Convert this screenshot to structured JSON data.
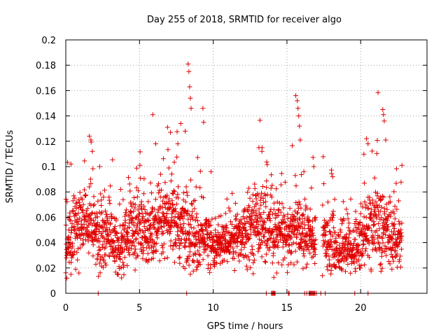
{
  "chart_data": {
    "type": "scatter",
    "title": "Day 255 of 2018, SRMTID for receiver algo",
    "xlabel": "GPS time / hours",
    "ylabel": "SRMTID / TECUs",
    "xlim": [
      0,
      24.5
    ],
    "ylim": [
      0,
      0.2
    ],
    "x_ticks": [
      0,
      5,
      10,
      15,
      20
    ],
    "x_tick_labels": [
      "0",
      "5",
      "10",
      "15",
      "20"
    ],
    "y_ticks": [
      0,
      0.02,
      0.04,
      0.06,
      0.08,
      0.1,
      0.12,
      0.14,
      0.16,
      0.18,
      0.2
    ],
    "y_tick_labels": [
      "0",
      "0.02",
      "0.04",
      "0.06",
      "0.08",
      "0.1",
      "0.12",
      "0.14",
      "0.16",
      "0.18",
      "0.2"
    ],
    "grid": true,
    "marker": "+",
    "color": "#e00000",
    "series": [
      {
        "name": "SRMTID",
        "generator": "approximate reconstruction of dense scatter cloud",
        "seed": 255,
        "step_hours": 0.01,
        "coverage_gaps": [
          [
            16.95,
            17.4
          ],
          [
            18.4,
            18.45
          ]
        ],
        "envelope": [
          [
            0.0,
            0.035,
            0.012
          ],
          [
            0.5,
            0.05,
            0.015
          ],
          [
            1.0,
            0.058,
            0.012
          ],
          [
            1.5,
            0.055,
            0.012
          ],
          [
            2.0,
            0.05,
            0.015
          ],
          [
            2.5,
            0.045,
            0.014
          ],
          [
            3.0,
            0.05,
            0.013
          ],
          [
            3.5,
            0.033,
            0.01
          ],
          [
            4.0,
            0.042,
            0.012
          ],
          [
            4.5,
            0.052,
            0.012
          ],
          [
            5.0,
            0.055,
            0.012
          ],
          [
            5.5,
            0.05,
            0.012
          ],
          [
            6.0,
            0.048,
            0.014
          ],
          [
            6.5,
            0.052,
            0.015
          ],
          [
            7.0,
            0.06,
            0.015
          ],
          [
            7.5,
            0.055,
            0.015
          ],
          [
            8.0,
            0.05,
            0.016
          ],
          [
            8.5,
            0.045,
            0.015
          ],
          [
            9.0,
            0.04,
            0.012
          ],
          [
            9.5,
            0.048,
            0.012
          ],
          [
            10.0,
            0.036,
            0.008
          ],
          [
            10.5,
            0.038,
            0.008
          ],
          [
            11.0,
            0.042,
            0.009
          ],
          [
            11.5,
            0.045,
            0.01
          ],
          [
            12.0,
            0.048,
            0.012
          ],
          [
            12.5,
            0.052,
            0.012
          ],
          [
            13.0,
            0.06,
            0.015
          ],
          [
            13.5,
            0.055,
            0.015
          ],
          [
            14.0,
            0.045,
            0.012
          ],
          [
            14.5,
            0.05,
            0.012
          ],
          [
            15.0,
            0.042,
            0.012
          ],
          [
            15.5,
            0.05,
            0.013
          ],
          [
            16.0,
            0.05,
            0.013
          ],
          [
            16.5,
            0.045,
            0.012
          ],
          [
            16.9,
            0.04,
            0.01
          ],
          [
            17.5,
            0.045,
            0.012
          ],
          [
            18.0,
            0.042,
            0.012
          ],
          [
            18.5,
            0.033,
            0.01
          ],
          [
            19.0,
            0.04,
            0.012
          ],
          [
            19.5,
            0.035,
            0.01
          ],
          [
            20.0,
            0.042,
            0.012
          ],
          [
            20.5,
            0.052,
            0.015
          ],
          [
            21.0,
            0.055,
            0.015
          ],
          [
            21.5,
            0.05,
            0.015
          ],
          [
            22.0,
            0.048,
            0.014
          ],
          [
            22.5,
            0.04,
            0.012
          ],
          [
            22.8,
            0.045,
            0.01
          ]
        ],
        "spikes": [
          [
            1.6,
            0.124
          ],
          [
            1.7,
            0.121
          ],
          [
            1.8,
            0.112
          ],
          [
            5.9,
            0.141
          ],
          [
            6.1,
            0.118
          ],
          [
            6.9,
            0.131
          ],
          [
            7.1,
            0.127
          ],
          [
            7.8,
            0.134
          ],
          [
            8.1,
            0.128
          ],
          [
            8.3,
            0.181
          ],
          [
            8.35,
            0.175
          ],
          [
            8.4,
            0.163
          ],
          [
            8.45,
            0.154
          ],
          [
            8.5,
            0.146
          ],
          [
            9.3,
            0.146
          ],
          [
            9.35,
            0.135
          ],
          [
            13.1,
            0.115
          ],
          [
            13.3,
            0.112
          ],
          [
            15.6,
            0.156
          ],
          [
            15.7,
            0.152
          ],
          [
            15.75,
            0.146
          ],
          [
            15.8,
            0.14
          ],
          [
            15.85,
            0.132
          ],
          [
            15.9,
            0.121
          ],
          [
            21.5,
            0.145
          ],
          [
            21.55,
            0.141
          ],
          [
            21.6,
            0.136
          ],
          [
            21.7,
            0.121
          ],
          [
            20.4,
            0.122
          ],
          [
            20.5,
            0.118
          ],
          [
            22.8,
            0.101
          ],
          [
            7.6,
            0.118
          ],
          [
            0.35,
            0.102
          ],
          [
            2.3,
            0.1
          ]
        ],
        "zero_points": [
          2.2,
          8.2,
          13.6,
          13.95,
          14.0,
          14.05,
          14.1,
          14.15,
          14.2,
          15.1,
          15.15,
          16.2,
          16.35,
          16.5,
          16.55,
          16.6,
          16.65,
          16.7,
          16.75,
          16.8,
          16.85,
          16.9,
          17.0,
          17.3,
          17.6,
          19.6,
          20.5
        ]
      }
    ]
  }
}
